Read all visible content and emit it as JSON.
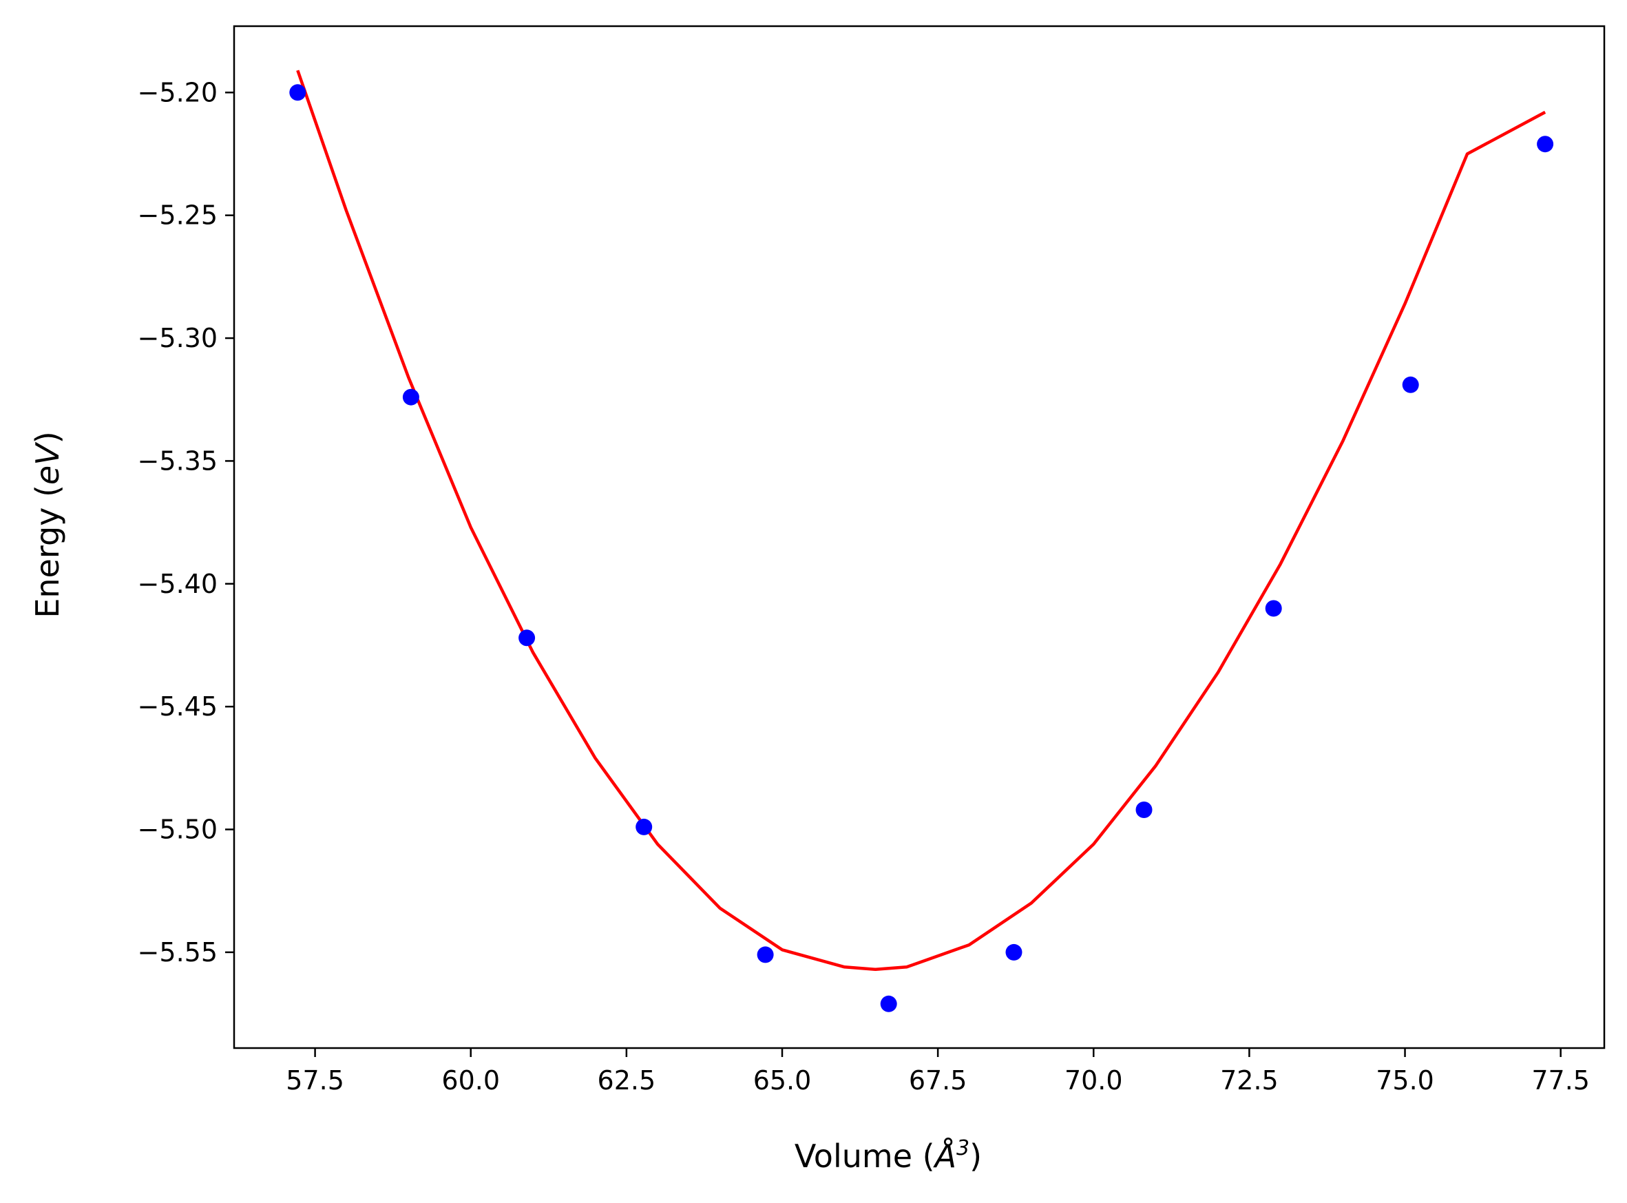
{
  "chart_data": {
    "type": "scatter",
    "title": "",
    "xlabel": "Volume (Å³)",
    "ylabel": "Energy (eV)",
    "xlabel_parts": {
      "pre": "Volume (",
      "var": "Å",
      "sup": "3",
      "post": ")"
    },
    "ylabel_parts": {
      "pre": "Energy (",
      "var": "eV",
      "post": ")"
    },
    "xlim": [
      56.2,
      78.2
    ],
    "ylim": [
      -5.589,
      -5.173
    ],
    "xticks": [
      57.5,
      60.0,
      62.5,
      65.0,
      67.5,
      70.0,
      72.5,
      75.0,
      77.5
    ],
    "xtick_labels": [
      "57.5",
      "60.0",
      "62.5",
      "65.0",
      "67.5",
      "70.0",
      "72.5",
      "75.0",
      "77.5"
    ],
    "yticks": [
      -5.2,
      -5.25,
      -5.3,
      -5.35,
      -5.4,
      -5.45,
      -5.5,
      -5.55
    ],
    "ytick_labels": [
      "−5.20",
      "−5.25",
      "−5.30",
      "−5.35",
      "−5.40",
      "−5.45",
      "−5.50",
      "−5.55"
    ],
    "grid": false,
    "legend": "none",
    "series": [
      {
        "kind": "points",
        "color": "#0000ff",
        "x": [
          57.22,
          59.04,
          60.9,
          62.78,
          64.73,
          66.71,
          68.72,
          70.81,
          72.89,
          75.09,
          77.25
        ],
        "y": [
          -5.2,
          -5.324,
          -5.422,
          -5.499,
          -5.551,
          -5.571,
          -5.55,
          -5.492,
          -5.41,
          -5.319,
          -5.221
        ]
      },
      {
        "kind": "fit-line",
        "color": "#ff0000",
        "x": [
          57.22,
          58.0,
          59.0,
          60.0,
          61.0,
          62.0,
          63.0,
          64.0,
          65.0,
          66.0,
          66.5,
          67.0,
          68.0,
          69.0,
          70.0,
          71.0,
          72.0,
          73.0,
          74.0,
          75.0,
          76.0,
          77.25
        ],
        "y": [
          -5.191,
          -5.248,
          -5.316,
          -5.377,
          -5.428,
          -5.471,
          -5.506,
          -5.532,
          -5.549,
          -5.556,
          -5.557,
          -5.556,
          -5.547,
          -5.53,
          -5.506,
          -5.474,
          -5.436,
          -5.392,
          -5.342,
          -5.286,
          -5.225,
          -5.208
        ]
      }
    ]
  }
}
